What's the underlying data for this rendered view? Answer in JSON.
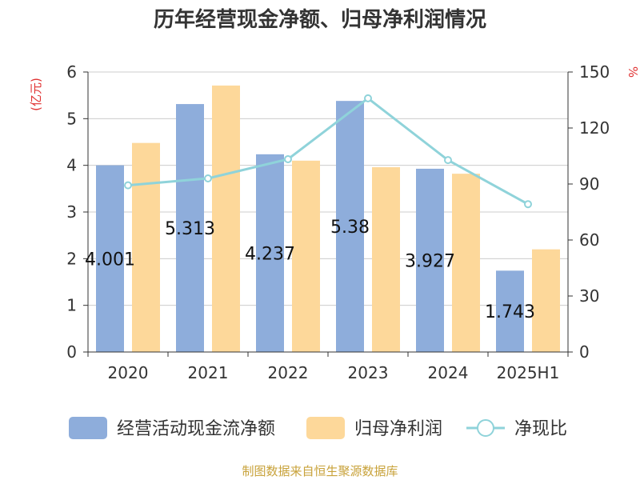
{
  "chart_data": {
    "type": "bar",
    "title": "历年经营现金净额、归母净利润情况",
    "categories": [
      "2020",
      "2021",
      "2022",
      "2023",
      "2024",
      "2025H1"
    ],
    "left_axis_unit": "(亿元)",
    "right_axis_unit": "%",
    "ylim_left": [
      0,
      6
    ],
    "yticks_left": [
      "0",
      "1",
      "2",
      "3",
      "4",
      "5",
      "6"
    ],
    "ylim_right": [
      0,
      150
    ],
    "yticks_right": [
      "0",
      "30",
      "60",
      "90",
      "120",
      "150"
    ],
    "grid": true,
    "legend_position": "bottom",
    "series": [
      {
        "name": "经营活动现金流净额",
        "kind": "bar",
        "axis": "left",
        "color": "#8eaddb",
        "values": [
          4.001,
          5.313,
          4.237,
          5.38,
          3.927,
          1.743
        ],
        "data_labels": [
          "4.001",
          "5.313",
          "4.237",
          "5.38",
          "3.927",
          "1.743"
        ]
      },
      {
        "name": "归母净利润",
        "kind": "bar",
        "axis": "left",
        "color": "#fdd89a",
        "values": [
          4.48,
          5.71,
          4.1,
          3.96,
          3.82,
          2.2
        ]
      },
      {
        "name": "净现比",
        "kind": "line",
        "axis": "right",
        "color": "#8fd3da",
        "values": [
          89.3,
          93.0,
          103.3,
          135.9,
          102.8,
          79.2
        ]
      }
    ]
  },
  "source_note": "制图数据来自恒生聚源数据库"
}
